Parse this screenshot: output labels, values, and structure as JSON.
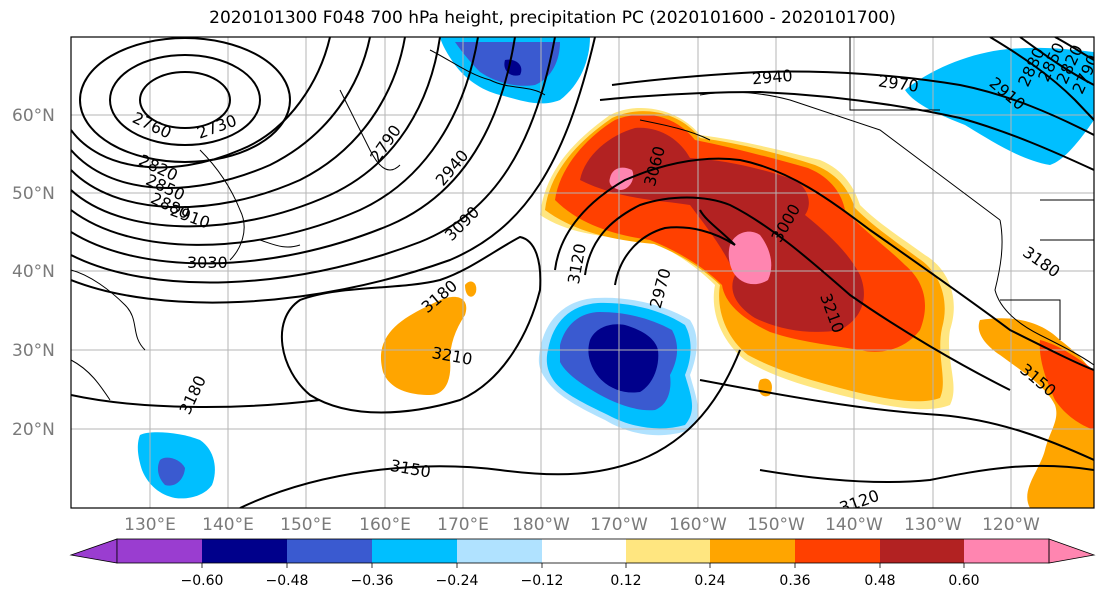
{
  "title": "2020101300 F048 700 hPa height, precipitation PC (2020101600 - 2020101700)",
  "lat_labels": [
    "60°N",
    "50°N",
    "40°N",
    "30°N",
    "20°N"
  ],
  "lon_labels": [
    "130°E",
    "140°E",
    "150°E",
    "160°E",
    "170°E",
    "180°W",
    "170°W",
    "160°W",
    "150°W",
    "140°W",
    "130°W",
    "120°W"
  ],
  "contour_labels": [
    "2730",
    "2760",
    "2790",
    "2820",
    "2850",
    "2880",
    "2910",
    "2940",
    "2970",
    "3000",
    "3030",
    "3060",
    "3090",
    "3120",
    "3150",
    "3180",
    "3210",
    "2940",
    "2970",
    "3000",
    "3180",
    "3150",
    "3120",
    "3150",
    "3180",
    "3210",
    "2910",
    "2880",
    "2850",
    "2820",
    "2790"
  ],
  "colorbar": {
    "ticks": [
      "−0.60",
      "−0.48",
      "−0.36",
      "−0.24",
      "−0.12",
      "0.12",
      "0.24",
      "0.36",
      "0.48",
      "0.60"
    ],
    "colors": [
      "#9a3dd0",
      "#00008b",
      "#3a5ad0",
      "#00bfff",
      "#b0e2ff",
      "#ffffff",
      "#ffe680",
      "#ffa500",
      "#ff4000",
      "#b22222",
      "#ff85b0",
      "#ff85b0"
    ]
  },
  "palette": {
    "deep_blue": "#00008b",
    "mid_blue": "#3a5ad0",
    "cyan": "#00bfff",
    "light_blue": "#b0e2ff",
    "yellow": "#ffe680",
    "orange": "#ffa500",
    "red_orange": "#ff4000",
    "dark_red": "#b22222",
    "pink": "#ff85b0"
  }
}
